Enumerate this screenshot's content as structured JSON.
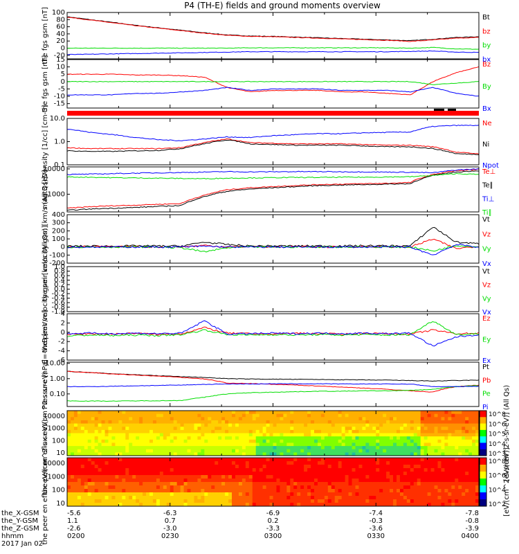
{
  "title": "P4 (TH-E) fields and ground moments overview",
  "date": "2017 Jan 02",
  "colors": {
    "black": "#000000",
    "red": "#ff0000",
    "green": "#00dd00",
    "blue": "#0000ff"
  },
  "time_ticks": [
    "0200",
    "0230",
    "0300",
    "0330",
    "0400"
  ],
  "ephemeris": {
    "labels": [
      "the_X-GSM",
      "the_Y-GSM",
      "the_Z-GSM",
      "hhmm"
    ],
    "x": [
      "-5.6",
      "-6.3",
      "-6.9",
      "-7.4",
      "-7.8"
    ],
    "y": [
      "1.1",
      "0.7",
      "0.2",
      "-0.3",
      "-0.8"
    ],
    "z": [
      "-2.6",
      "-3.0",
      "-3.3",
      "-3.6",
      "-3.9"
    ]
  },
  "chart_data": [
    {
      "type": "line",
      "ylabel": "the fgs gsm [nT]",
      "ylim": [
        -30,
        100
      ],
      "yticks": [
        "100",
        "80",
        "60",
        "40",
        "20",
        "0",
        "-20"
      ],
      "legend": [
        "Bt",
        "bz",
        "by",
        "bx"
      ],
      "series": [
        {
          "name": "Bt",
          "color": "black",
          "values": [
            88,
            80,
            72,
            64,
            57,
            50,
            43,
            37,
            34,
            33,
            31,
            29,
            27,
            25,
            23,
            21,
            25,
            30,
            32
          ]
        },
        {
          "name": "bz",
          "color": "red",
          "values": [
            87,
            79,
            71,
            63,
            56,
            49,
            42,
            36,
            33,
            32,
            30,
            28,
            26,
            24,
            22,
            19,
            23,
            28,
            30
          ]
        },
        {
          "name": "by",
          "color": "green",
          "values": [
            0,
            0,
            0,
            0,
            0,
            0,
            0,
            0,
            1,
            1,
            1,
            1,
            1,
            1,
            1,
            0,
            2,
            -2,
            -3
          ]
        },
        {
          "name": "bx",
          "color": "blue",
          "values": [
            -18,
            -17,
            -16,
            -15,
            -14,
            -13,
            -12,
            -11,
            -10,
            -10,
            -10,
            -10,
            -10,
            -10,
            -10,
            -9,
            -8,
            -11,
            -12
          ]
        }
      ]
    },
    {
      "type": "line",
      "ylabel": "the fgs gsm [nT]",
      "ylim": [
        -18,
        15
      ],
      "yticks": [
        "15",
        "10",
        "5",
        "0",
        "-5",
        "-10",
        "-15"
      ],
      "legend": [
        "Bz",
        "By",
        "Bx"
      ],
      "series": [
        {
          "name": "Bz",
          "color": "red",
          "values": [
            5,
            5,
            5,
            4.5,
            4.5,
            4,
            3,
            -4,
            -7,
            -6,
            -6,
            -6,
            -7,
            -7,
            -8,
            -9,
            0,
            6,
            10
          ]
        },
        {
          "name": "By",
          "color": "green",
          "values": [
            0,
            0,
            0,
            0,
            0,
            0,
            0,
            0,
            0,
            0,
            0,
            0,
            0,
            0,
            0,
            0,
            -2,
            -1,
            0
          ]
        },
        {
          "name": "Bx",
          "color": "blue",
          "values": [
            -9,
            -9,
            -9,
            -8,
            -8,
            -7,
            -6,
            -4,
            -6,
            -5,
            -5,
            -5,
            -6,
            -6,
            -6,
            -7,
            -4,
            -8,
            -10
          ]
        }
      ]
    },
    {
      "type": "line",
      "scale": "log",
      "ylabel": "Density [1/cc] [cm-3]",
      "ylim": [
        0.1,
        10
      ],
      "yticks": [
        "10.0",
        "1.0",
        "0.1"
      ],
      "legend": [
        "Ne",
        "Ni",
        "Npot"
      ],
      "series": [
        {
          "name": "Ne",
          "color": "red",
          "values": [
            0.55,
            0.5,
            0.5,
            0.5,
            0.5,
            0.55,
            0.9,
            1.3,
            0.9,
            0.85,
            0.8,
            0.8,
            0.8,
            0.75,
            0.7,
            0.7,
            0.6,
            0.35,
            0.3
          ]
        },
        {
          "name": "Ni",
          "color": "black",
          "values": [
            0.4,
            0.38,
            0.38,
            0.4,
            0.42,
            0.5,
            0.8,
            1.2,
            0.8,
            0.75,
            0.7,
            0.7,
            0.7,
            0.65,
            0.6,
            0.6,
            0.5,
            0.3,
            0.28
          ]
        },
        {
          "name": "Npot",
          "color": "blue",
          "values": [
            3.5,
            2.5,
            2,
            1.5,
            1.2,
            1.1,
            1.3,
            1.6,
            1.5,
            1.8,
            2,
            2.2,
            2.2,
            2.4,
            2.5,
            2.6,
            4.5,
            5,
            5
          ]
        }
      ]
    },
    {
      "type": "line",
      "scale": "log",
      "ylabel": "magt3 [eV]",
      "ylim": [
        200,
        12000
      ],
      "yticks": [
        "10000",
        "1000"
      ],
      "legend": [
        "Te⊥",
        "Te∥",
        "Ti⊥",
        "Ti∥"
      ],
      "series": [
        {
          "name": "Te⊥",
          "color": "red",
          "values": [
            280,
            320,
            350,
            370,
            400,
            430,
            900,
            1500,
            1800,
            2000,
            2200,
            2400,
            2500,
            2600,
            2700,
            2900,
            6000,
            8500,
            9500
          ]
        },
        {
          "name": "Te∥",
          "color": "black",
          "values": [
            230,
            260,
            280,
            300,
            330,
            360,
            800,
            1300,
            1600,
            1800,
            2000,
            2200,
            2300,
            2400,
            2500,
            2600,
            5500,
            7500,
            8500
          ]
        },
        {
          "name": "Ti⊥",
          "color": "blue",
          "values": [
            6000,
            6200,
            6500,
            6800,
            7000,
            7200,
            7500,
            7800,
            7600,
            7700,
            7800,
            7800,
            7700,
            7600,
            7500,
            7400,
            7000,
            9000,
            10000
          ]
        },
        {
          "name": "Ti∥",
          "color": "green",
          "values": [
            4800,
            4700,
            4500,
            4400,
            4300,
            4200,
            4100,
            4300,
            4400,
            4500,
            4600,
            4600,
            4700,
            4700,
            4800,
            4900,
            5500,
            6500,
            6000
          ]
        }
      ]
    },
    {
      "type": "line",
      "ylabel": "the peir velocity gsm [km/s (All Qs)]",
      "ylim": [
        -200,
        400
      ],
      "yticks": [
        "400",
        "300",
        "200",
        "100",
        "0",
        "-100",
        "-200"
      ],
      "legend": [
        "Vt",
        "Vz",
        "Vy",
        "Vx"
      ],
      "series": [
        {
          "name": "Vt",
          "color": "black",
          "values": [
            10,
            12,
            10,
            14,
            12,
            12,
            60,
            30,
            12,
            14,
            12,
            14,
            12,
            16,
            14,
            14,
            250,
            60,
            40
          ]
        },
        {
          "name": "Vz",
          "color": "red",
          "values": [
            0,
            5,
            0,
            5,
            0,
            0,
            20,
            0,
            5,
            0,
            5,
            0,
            0,
            5,
            0,
            0,
            100,
            -20,
            10
          ]
        },
        {
          "name": "Vy",
          "color": "green",
          "values": [
            0,
            0,
            0,
            0,
            0,
            -10,
            -60,
            -10,
            0,
            0,
            0,
            0,
            0,
            0,
            0,
            0,
            -50,
            20,
            0
          ]
        },
        {
          "name": "Vx",
          "color": "blue",
          "values": [
            0,
            0,
            0,
            0,
            0,
            0,
            10,
            0,
            0,
            0,
            0,
            0,
            0,
            0,
            0,
            0,
            -100,
            30,
            0
          ]
        }
      ]
    },
    {
      "type": "line",
      "ylabel": "the peer velocity gsm [km/s (All Qs)]",
      "ylim": [
        -1,
        1
      ],
      "yticks": [
        "1.0",
        "0.8",
        "0.6",
        "0.4",
        "0.2",
        "0.0",
        "-0.2",
        "-0.4",
        "-0.6",
        "-0.8",
        "-1.0"
      ],
      "legend": [
        "Vt",
        "Vz",
        "Vy",
        "Vx"
      ],
      "series": []
    },
    {
      "type": "line",
      "ylabel": "E=-VxB [mV/m]",
      "ylim": [
        -6,
        4
      ],
      "yticks": [
        "4",
        "2",
        "0",
        "-2",
        "-4",
        "-6"
      ],
      "legend": [
        "Ez",
        "Ey",
        "Ex"
      ],
      "series": [
        {
          "name": "Ez",
          "color": "red",
          "values": [
            -0.5,
            -0.3,
            -0.4,
            -0.2,
            -0.5,
            -0.3,
            1,
            -0.2,
            -0.3,
            -0.4,
            -0.2,
            -0.3,
            -0.4,
            -0.2,
            -0.3,
            -0.4,
            0.5,
            -0.3,
            -0.2
          ]
        },
        {
          "name": "Ey",
          "color": "green",
          "values": [
            -0.8,
            -0.6,
            -0.7,
            -0.6,
            -0.7,
            -0.5,
            0.5,
            -0.5,
            -0.6,
            -0.5,
            -0.6,
            -0.5,
            -0.6,
            -0.5,
            -0.6,
            -0.5,
            2.5,
            -0.5,
            -0.3
          ]
        },
        {
          "name": "Ex",
          "color": "blue",
          "values": [
            -0.3,
            -0.2,
            -0.3,
            -0.2,
            -0.3,
            -0.2,
            2.5,
            -0.4,
            -0.3,
            -0.2,
            -0.3,
            -0.2,
            -0.3,
            -0.2,
            -0.3,
            -0.2,
            -3,
            -1,
            -0.5
          ]
        }
      ]
    },
    {
      "type": "line",
      "scale": "log",
      "ylabel": "Pressure [nPa]",
      "ylim": [
        0.015,
        12
      ],
      "yticks": [
        "10.00",
        "1.00",
        "0.10"
      ],
      "legend": [
        "Pt",
        "Pb",
        "Pe",
        "Pi"
      ],
      "series": [
        {
          "name": "Pt",
          "color": "black",
          "values": [
            3.0,
            2.5,
            2.1,
            1.8,
            1.55,
            1.35,
            1.2,
            1.0,
            0.95,
            0.92,
            0.9,
            0.88,
            0.85,
            0.82,
            0.8,
            0.75,
            0.7,
            0.75,
            0.8
          ]
        },
        {
          "name": "Pb",
          "color": "red",
          "values": [
            3.0,
            2.5,
            2.0,
            1.7,
            1.45,
            1.2,
            0.95,
            0.5,
            0.48,
            0.42,
            0.38,
            0.33,
            0.28,
            0.24,
            0.2,
            0.16,
            0.13,
            0.3,
            0.38
          ]
        },
        {
          "name": "Pe",
          "color": "green",
          "values": [
            0.035,
            0.034,
            0.034,
            0.035,
            0.036,
            0.037,
            0.06,
            0.1,
            0.12,
            0.13,
            0.14,
            0.15,
            0.15,
            0.16,
            0.16,
            0.17,
            0.2,
            0.3,
            0.35
          ]
        },
        {
          "name": "Pi",
          "color": "blue",
          "values": [
            0.3,
            0.3,
            0.32,
            0.34,
            0.36,
            0.38,
            0.42,
            0.45,
            0.45,
            0.46,
            0.46,
            0.46,
            0.45,
            0.45,
            0.45,
            0.44,
            0.3,
            0.3,
            0.32
          ]
        }
      ]
    },
    {
      "type": "heatmap",
      "ylabel": "the peir en eflux eV/(cm^2-s-sr-eV)",
      "yticks": [
        "10000",
        "1000",
        "100",
        "10"
      ],
      "colorbar_ticks": [
        "10^8",
        "10^6",
        "10^5",
        "10^4",
        "10^3"
      ],
      "colorbar_label": "[eV/(cm^2-s-sr-eV)] (All Qs)"
    },
    {
      "type": "heatmap",
      "ylabel": "the peer en eflux eV/(cm^2-s-sr-eV)",
      "yticks": [
        "10000",
        "1000",
        "100",
        "10"
      ],
      "colorbar_ticks": [
        "10^8",
        "10^6",
        "10^4",
        "10^2"
      ],
      "colorbar_label": "[eV/(cm^2-s-sr-eV)]"
    }
  ]
}
